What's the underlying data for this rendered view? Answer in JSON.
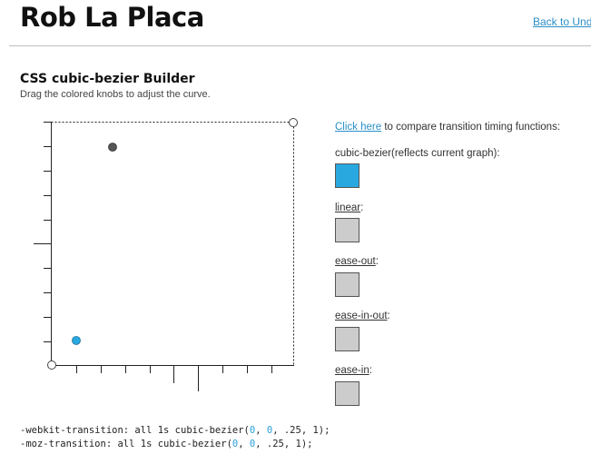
{
  "header": {
    "site_title": "Rob La Placa",
    "back_link": "Back to Und"
  },
  "builder": {
    "title": "CSS cubic-bezier Builder",
    "subtitle": "Drag the colored knobs to adjust the curve.",
    "knob_colors": {
      "p1": "#29a8e0",
      "p2": "#555555"
    },
    "control_points": {
      "p1": [
        0,
        0
      ],
      "p2": [
        0.25,
        1
      ]
    }
  },
  "compare": {
    "link_text": "Click here",
    "rest_text": " to compare transition timing functions:"
  },
  "timing_functions": [
    {
      "name": "cubic-bezier",
      "suffix": "(reflects current graph):",
      "underlined": false,
      "color": "#29a8e0"
    },
    {
      "name": "linear",
      "suffix": ":",
      "underlined": true,
      "color": "#cccccc"
    },
    {
      "name": "ease-out",
      "suffix": ":",
      "underlined": true,
      "color": "#cccccc"
    },
    {
      "name": "ease-in-out",
      "suffix": ":",
      "underlined": true,
      "color": "#cccccc"
    },
    {
      "name": "ease-in",
      "suffix": ":",
      "underlined": true,
      "color": "#cccccc"
    }
  ],
  "code": {
    "lines": [
      {
        "prefix": "-webkit-transition: all 1s cubic-bezier(",
        "args": [
          "0",
          "0",
          ".25",
          "1"
        ],
        "suffix": ");"
      },
      {
        "prefix": "-moz-transition: all 1s cubic-bezier(",
        "args": [
          "0",
          "0",
          ".25",
          "1"
        ],
        "suffix": ");"
      }
    ]
  }
}
